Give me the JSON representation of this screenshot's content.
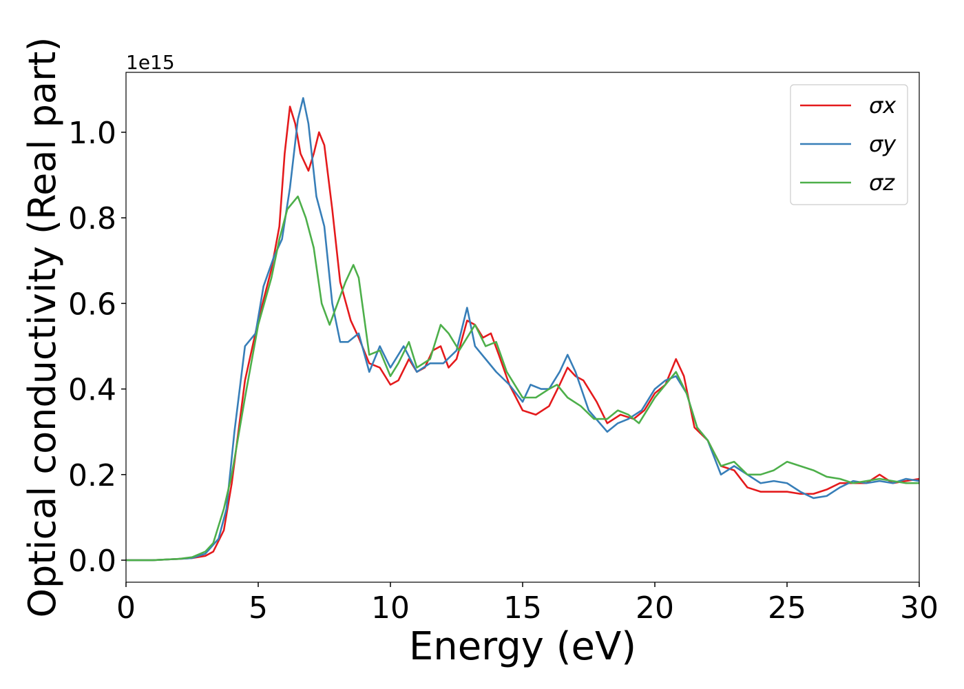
{
  "chart_data": {
    "type": "line",
    "xlabel": "Energy (eV)",
    "ylabel": "Optical conductivity (Real part)",
    "y_offset_label": "1e15",
    "xlim": [
      0,
      30
    ],
    "xticks": [
      0,
      5,
      10,
      15,
      20,
      25,
      30
    ],
    "ylim": [
      -0.0515,
      1.14
    ],
    "yticks": [
      {
        "value": 0,
        "label": "0.0"
      },
      0.2,
      0.4,
      0.6,
      0.8,
      {
        "value": 1,
        "label": "1.0"
      }
    ],
    "legend": "upper right",
    "series": [
      {
        "name": "σx",
        "color": "#e41a1c",
        "x": [
          0,
          1,
          2,
          2.5,
          3,
          3.3,
          3.7,
          4,
          4.5,
          5,
          5.5,
          5.8,
          6,
          6.2,
          6.4,
          6.6,
          6.9,
          7.1,
          7.3,
          7.5,
          7.8,
          8.1,
          8.5,
          8.8,
          9.2,
          9.6,
          10,
          10.3,
          10.7,
          11,
          11.3,
          11.6,
          11.9,
          12.2,
          12.5,
          12.9,
          13.2,
          13.5,
          13.8,
          14.1,
          14.5,
          15,
          15.5,
          16,
          16.4,
          16.7,
          17,
          17.3,
          17.8,
          18.2,
          18.7,
          19.2,
          19.6,
          20,
          20.4,
          20.8,
          21.1,
          21.5,
          22,
          22.5,
          23,
          23.5,
          24,
          24.5,
          25,
          25.5,
          26,
          26.5,
          27,
          27.5,
          28,
          28.5,
          29,
          29.5,
          30
        ],
        "values": [
          0,
          0,
          0.003,
          0.005,
          0.01,
          0.02,
          0.07,
          0.18,
          0.42,
          0.56,
          0.68,
          0.78,
          0.95,
          1.06,
          1.02,
          0.95,
          0.91,
          0.95,
          1.0,
          0.97,
          0.82,
          0.65,
          0.56,
          0.52,
          0.46,
          0.45,
          0.41,
          0.42,
          0.47,
          0.44,
          0.45,
          0.49,
          0.5,
          0.45,
          0.47,
          0.56,
          0.55,
          0.52,
          0.53,
          0.48,
          0.41,
          0.35,
          0.34,
          0.36,
          0.41,
          0.45,
          0.43,
          0.42,
          0.37,
          0.32,
          0.34,
          0.33,
          0.35,
          0.39,
          0.41,
          0.47,
          0.43,
          0.31,
          0.28,
          0.22,
          0.21,
          0.17,
          0.16,
          0.16,
          0.16,
          0.155,
          0.155,
          0.165,
          0.18,
          0.18,
          0.18,
          0.2,
          0.18,
          0.185,
          0.19
        ]
      },
      {
        "name": "σy",
        "color": "#377eb8",
        "x": [
          0,
          1,
          2,
          2.5,
          3,
          3.5,
          3.8,
          4.1,
          4.5,
          4.9,
          5.2,
          5.6,
          5.9,
          6.2,
          6.5,
          6.7,
          6.9,
          7.2,
          7.5,
          7.8,
          8.1,
          8.4,
          8.8,
          9.2,
          9.6,
          10,
          10.5,
          11,
          11.5,
          12,
          12.5,
          12.9,
          13.2,
          13.6,
          14,
          14.5,
          15,
          15.3,
          15.7,
          16,
          16.4,
          16.7,
          17,
          17.5,
          18.2,
          18.6,
          19,
          19.5,
          20,
          20.4,
          20.8,
          21.2,
          21.6,
          22,
          22.5,
          23,
          23.5,
          24,
          24.5,
          25,
          25.5,
          26,
          26.5,
          27,
          27.5,
          28,
          28.5,
          29,
          29.5,
          30
        ],
        "values": [
          0,
          0,
          0.003,
          0.005,
          0.015,
          0.05,
          0.12,
          0.3,
          0.5,
          0.53,
          0.64,
          0.71,
          0.75,
          0.87,
          1.03,
          1.08,
          1.02,
          0.85,
          0.78,
          0.6,
          0.51,
          0.51,
          0.53,
          0.44,
          0.5,
          0.45,
          0.5,
          0.44,
          0.46,
          0.46,
          0.49,
          0.59,
          0.5,
          0.47,
          0.44,
          0.41,
          0.37,
          0.41,
          0.4,
          0.4,
          0.44,
          0.48,
          0.44,
          0.35,
          0.3,
          0.32,
          0.33,
          0.35,
          0.4,
          0.42,
          0.43,
          0.39,
          0.31,
          0.28,
          0.2,
          0.22,
          0.2,
          0.18,
          0.185,
          0.18,
          0.16,
          0.145,
          0.15,
          0.17,
          0.185,
          0.18,
          0.185,
          0.18,
          0.19,
          0.185
        ]
      },
      {
        "name": "σz",
        "color": "#4daf4a",
        "x": [
          0,
          1,
          2,
          2.5,
          3,
          3.3,
          3.7,
          4,
          4.5,
          5,
          5.5,
          5.8,
          6.1,
          6.5,
          6.8,
          7.1,
          7.4,
          7.7,
          8,
          8.3,
          8.6,
          8.8,
          9.2,
          9.6,
          10,
          10.3,
          10.7,
          11,
          11.5,
          11.9,
          12.2,
          12.6,
          13,
          13.2,
          13.6,
          14,
          14.4,
          15,
          15.5,
          16,
          16.3,
          16.7,
          17.2,
          17.7,
          18.2,
          18.6,
          19,
          19.4,
          20,
          20.4,
          20.8,
          21.2,
          21.6,
          22,
          22.5,
          23,
          23.5,
          24,
          24.5,
          25,
          25.5,
          26,
          26.5,
          27,
          27.5,
          28,
          28.5,
          29,
          29.5,
          30
        ],
        "values": [
          0,
          0,
          0.003,
          0.007,
          0.02,
          0.04,
          0.12,
          0.2,
          0.38,
          0.55,
          0.66,
          0.75,
          0.82,
          0.85,
          0.8,
          0.73,
          0.6,
          0.55,
          0.6,
          0.65,
          0.69,
          0.66,
          0.48,
          0.49,
          0.43,
          0.46,
          0.51,
          0.45,
          0.47,
          0.55,
          0.53,
          0.49,
          0.53,
          0.55,
          0.5,
          0.51,
          0.44,
          0.38,
          0.38,
          0.4,
          0.41,
          0.38,
          0.36,
          0.33,
          0.33,
          0.35,
          0.34,
          0.32,
          0.38,
          0.41,
          0.44,
          0.39,
          0.31,
          0.28,
          0.22,
          0.23,
          0.2,
          0.2,
          0.21,
          0.23,
          0.22,
          0.21,
          0.195,
          0.19,
          0.18,
          0.185,
          0.19,
          0.185,
          0.18,
          0.18
        ]
      }
    ]
  }
}
